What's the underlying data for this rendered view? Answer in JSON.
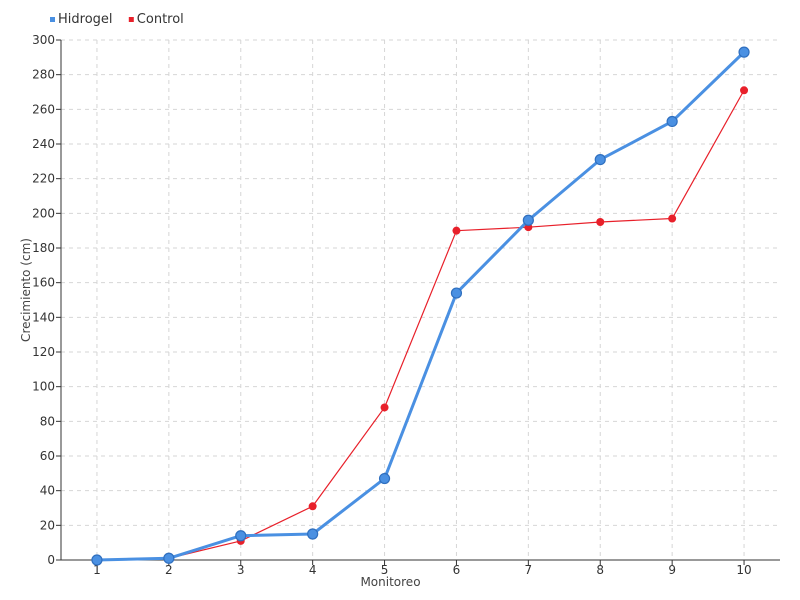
{
  "chart_data": {
    "type": "line",
    "title": "",
    "xlabel": "Monitoreo",
    "ylabel": "Crecimiento (cm)",
    "x": [
      1,
      2,
      3,
      4,
      5,
      6,
      7,
      8,
      9,
      10
    ],
    "x_tick_labels": [
      "1",
      "2",
      "3",
      "4",
      "5",
      "6",
      "7",
      "8",
      "9",
      "10"
    ],
    "y_ticks": [
      0,
      20,
      40,
      60,
      80,
      100,
      120,
      140,
      160,
      180,
      200,
      220,
      240,
      260,
      280,
      300
    ],
    "ylim": [
      0,
      300
    ],
    "grid": true,
    "legend_position": "top-left",
    "series": [
      {
        "name": "Hidrogel",
        "color": "#4a90e2",
        "values": [
          0,
          1,
          14,
          15,
          47,
          154,
          196,
          231,
          253,
          293
        ]
      },
      {
        "name": "Control",
        "color": "#e8202a",
        "values": [
          0,
          1,
          11,
          31,
          88,
          190,
          192,
          195,
          197,
          271
        ]
      }
    ]
  }
}
